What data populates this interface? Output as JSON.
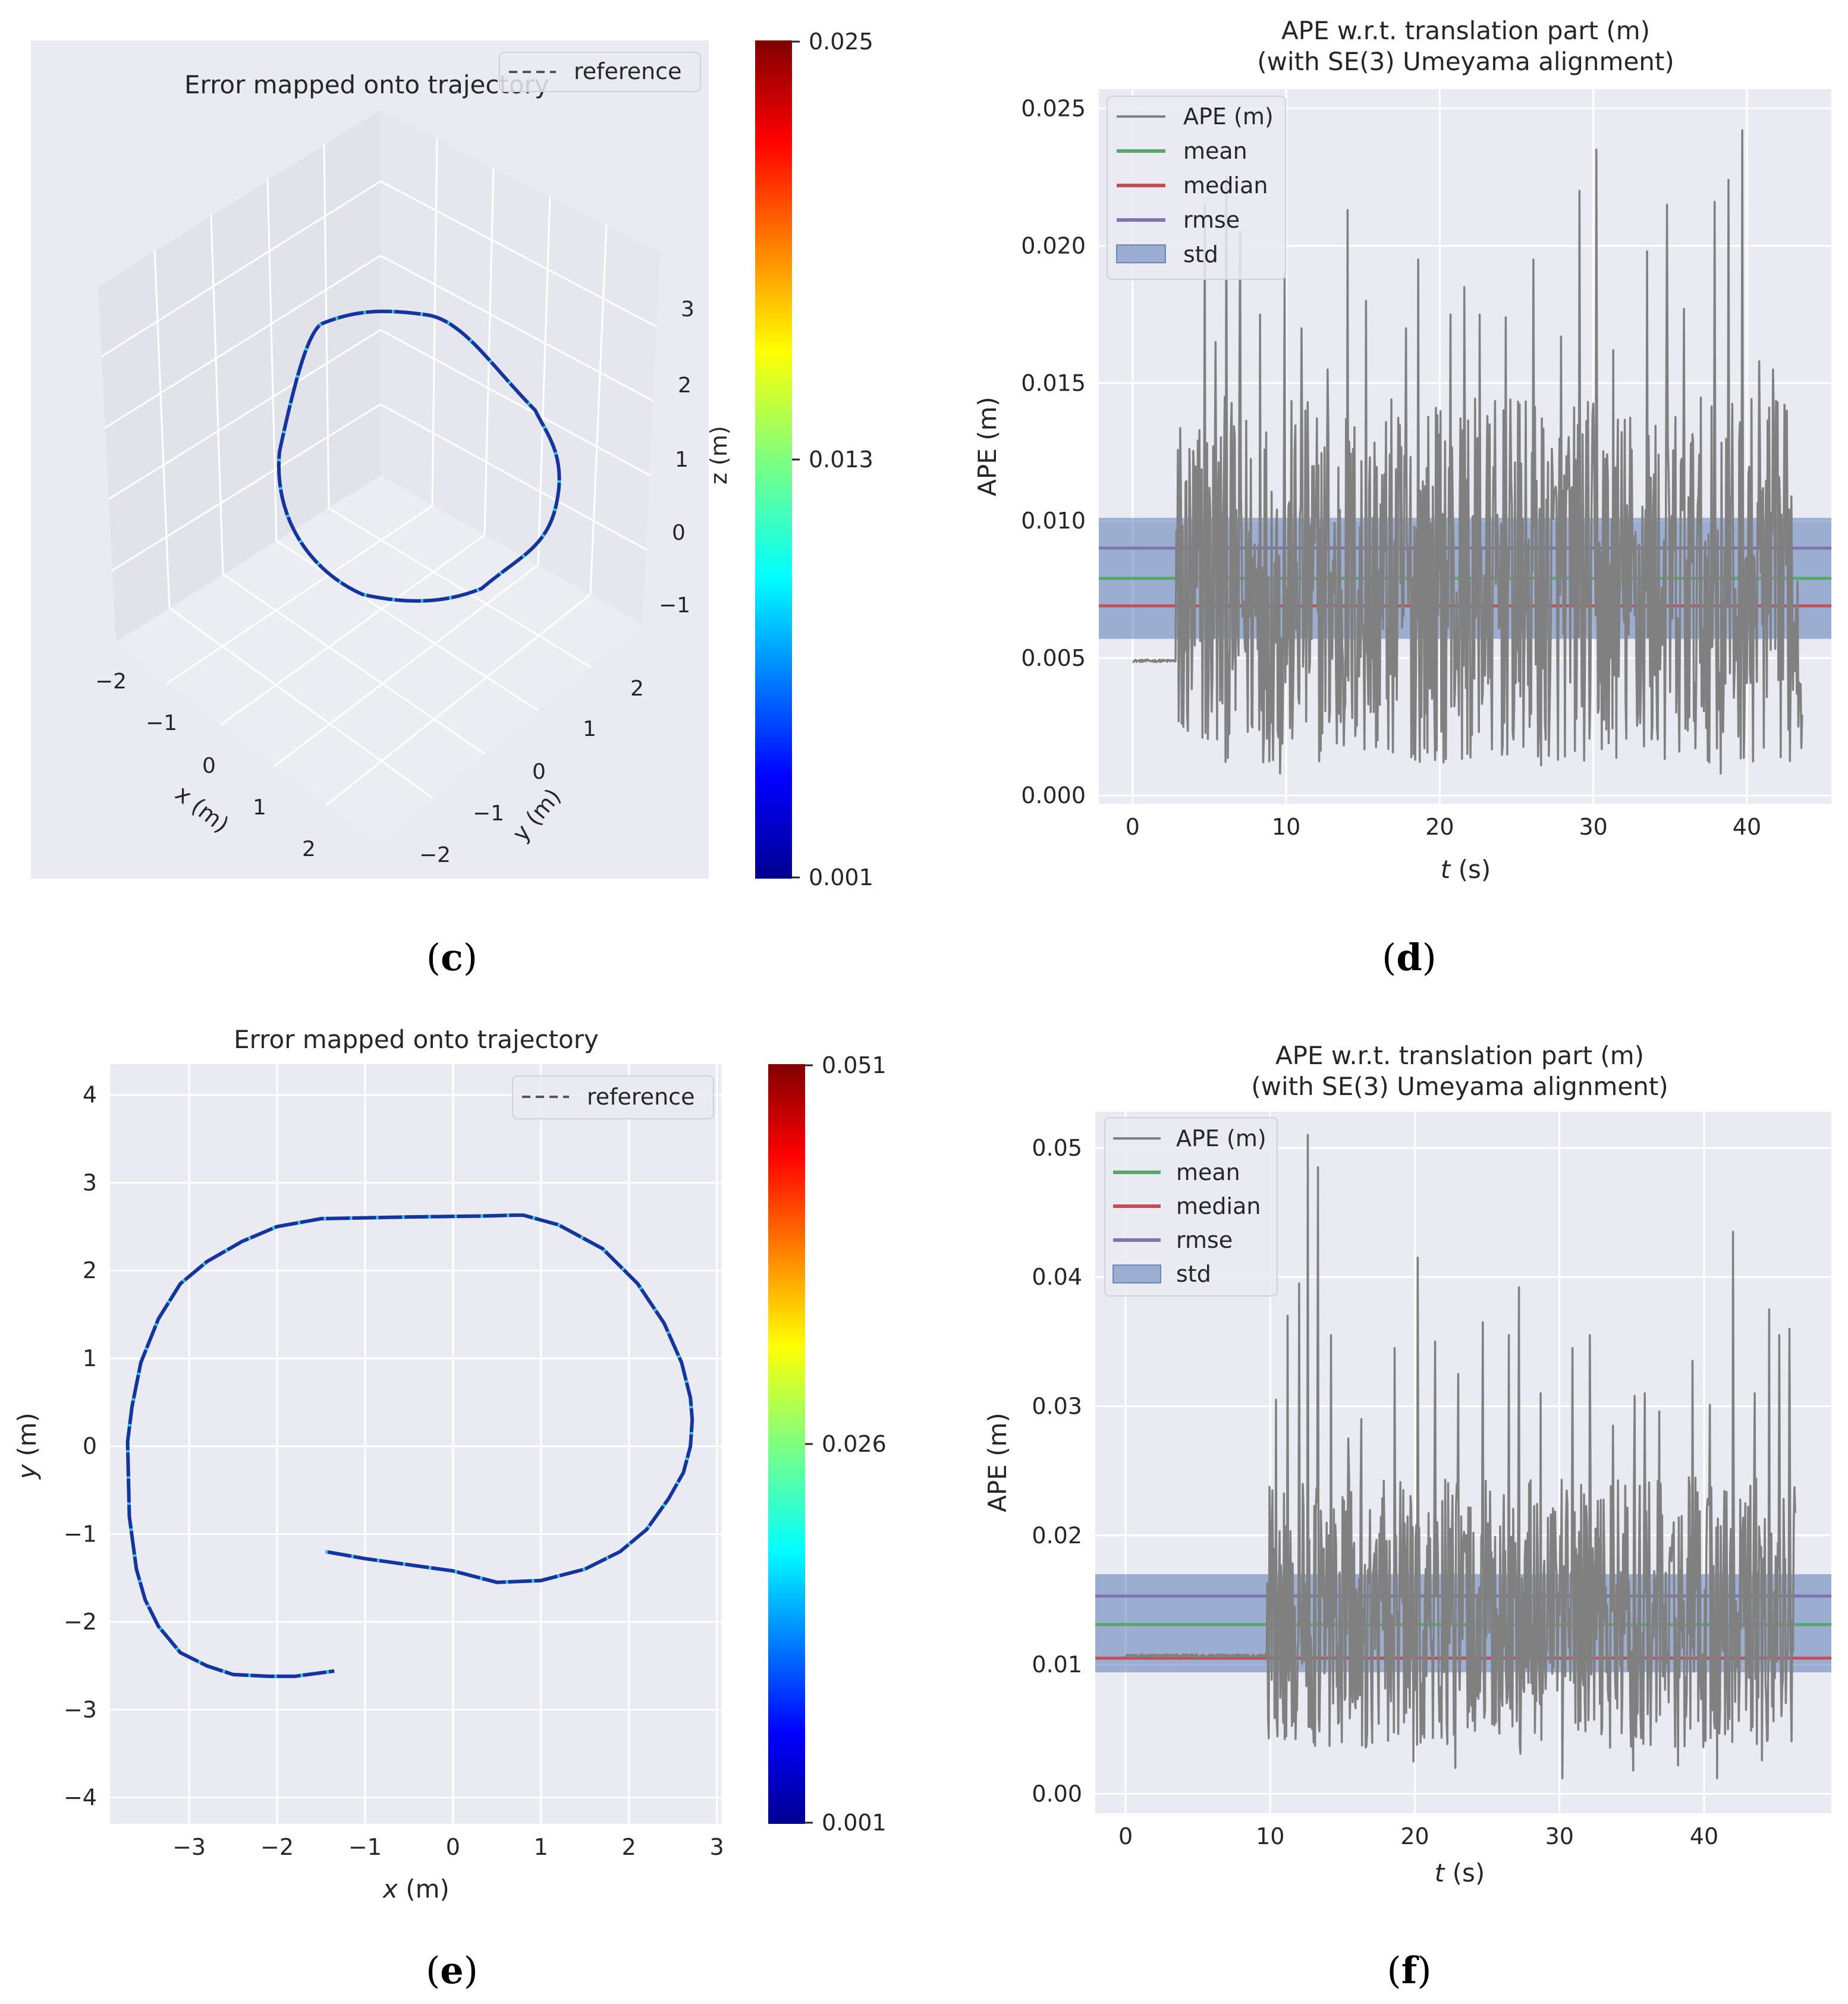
{
  "colors": {
    "panel_bg": "#EAEAF2",
    "grid": "#FFFFFF",
    "ape": "#808080",
    "mean": "#55A868",
    "median": "#C44E52",
    "rmse": "#8172B2",
    "std": "#4C72B0",
    "text": "#262626"
  },
  "chart_data": [
    {
      "id": "c",
      "panel_label": "(c)",
      "label_letter": "c",
      "type": "line3d",
      "title": "Error mapped onto trajectory",
      "legend": [
        "reference"
      ],
      "xlabel": "x (m)",
      "ylabel": "y (m)",
      "zlabel": "z (m)",
      "xticks": [
        "−2",
        "−1",
        "0",
        "1",
        "2"
      ],
      "yticks": [
        "−2",
        "−1",
        "0",
        "1",
        "2"
      ],
      "zticks": [
        "−1",
        "0",
        "1",
        "2",
        "3"
      ],
      "colorbar": {
        "min": 0.001,
        "max": 0.025,
        "ticks": [
          "0.025",
          "0.013",
          "0.001"
        ]
      },
      "trajectory": {
        "description": "closed-loop path in x-y plane, z approximately constant",
        "x": [
          0.4,
          0.9,
          1.6,
          2.1,
          2.4,
          2.3,
          1.9,
          1.2,
          0.4,
          -0.4,
          -1.1,
          -1.7,
          -1.9,
          -1.5,
          -0.9,
          -0.3
        ],
        "y": [
          -1.8,
          -1.9,
          -1.6,
          -1.0,
          -0.2,
          0.6,
          1.3,
          1.9,
          2.2,
          2.1,
          1.7,
          1.0,
          0.2,
          -0.6,
          -1.2,
          -1.6
        ]
      }
    },
    {
      "id": "d",
      "panel_label": "(d)",
      "label_letter": "d",
      "type": "line",
      "title": "APE w.r.t. translation part (m)",
      "subtitle": "(with SE(3) Umeyama alignment)",
      "xlabel_italic": "t",
      "xlabel_rest": " (s)",
      "ylabel": "APE (m)",
      "xlim": [
        -2.2,
        45.5
      ],
      "ylim": [
        -0.0003,
        0.0257
      ],
      "xticks": [
        0,
        10,
        20,
        30,
        40
      ],
      "xtick_labels": [
        "0",
        "10",
        "20",
        "30",
        "40"
      ],
      "yticks": [
        0.0,
        0.005,
        0.01,
        0.015,
        0.02,
        0.025
      ],
      "ytick_labels": [
        "0.000",
        "0.005",
        "0.010",
        "0.015",
        "0.020",
        "0.025"
      ],
      "legend": [
        "APE (m)",
        "mean",
        "median",
        "rmse",
        "std"
      ],
      "stats": {
        "mean": 0.0079,
        "median": 0.0069,
        "rmse": 0.009,
        "std_low": 0.0057,
        "std_high": 0.0101
      },
      "series": [
        {
          "name": "APE (m)",
          "t_start": 0.0,
          "t_end": 43.6,
          "flat_until": 2.8,
          "flat_value": 0.0049,
          "noise_low": 0.0012,
          "noise_high": 0.0145,
          "peaks": [
            [
              4.7,
              0.0215
            ],
            [
              5.4,
              0.0165
            ],
            [
              6.1,
              0.0225
            ],
            [
              7.0,
              0.0205
            ],
            [
              8.3,
              0.0175
            ],
            [
              9.9,
              0.019
            ],
            [
              11.0,
              0.017
            ],
            [
              12.7,
              0.0155
            ],
            [
              14.0,
              0.0213
            ],
            [
              15.2,
              0.018
            ],
            [
              17.8,
              0.017
            ],
            [
              18.6,
              0.0195
            ],
            [
              20.7,
              0.0175
            ],
            [
              21.6,
              0.0185
            ],
            [
              22.6,
              0.0175
            ],
            [
              24.3,
              0.0174
            ],
            [
              26.1,
              0.0195
            ],
            [
              27.9,
              0.0167
            ],
            [
              29.1,
              0.022
            ],
            [
              30.2,
              0.0235
            ],
            [
              31.3,
              0.0162
            ],
            [
              33.5,
              0.0198
            ],
            [
              34.8,
              0.0215
            ],
            [
              35.9,
              0.0177
            ],
            [
              37.9,
              0.0216
            ],
            [
              38.8,
              0.0224
            ],
            [
              39.7,
              0.0242
            ],
            [
              40.8,
              0.0158
            ],
            [
              41.7,
              0.0155
            ],
            [
              42.6,
              0.014
            ]
          ],
          "dips": [
            [
              3.0,
              0.0027
            ],
            [
              3.3,
              0.0025
            ],
            [
              9.6,
              0.0008
            ],
            [
              13.3,
              0.0019
            ],
            [
              18.4,
              0.0013
            ],
            [
              22.1,
              0.0022
            ],
            [
              26.6,
              0.0011
            ],
            [
              31.0,
              0.0019
            ],
            [
              35.6,
              0.0016
            ],
            [
              38.3,
              0.0008
            ]
          ]
        }
      ]
    },
    {
      "id": "e",
      "panel_label": "(e)",
      "label_letter": "e",
      "type": "line",
      "title": "Error mapped onto trajectory",
      "legend": [
        "reference"
      ],
      "xlabel_italic": "x",
      "xlabel_rest": " (m)",
      "ylabel_italic": "y",
      "ylabel_rest": " (m)",
      "xlim": [
        -3.9,
        3.05
      ],
      "ylim": [
        -4.3,
        4.35
      ],
      "xticks": [
        -3,
        -2,
        -1,
        0,
        1,
        2,
        3
      ],
      "xtick_labels": [
        "−3",
        "−2",
        "−1",
        "0",
        "1",
        "2",
        "3"
      ],
      "yticks": [
        -4,
        -3,
        -2,
        -1,
        0,
        1,
        2,
        3,
        4
      ],
      "ytick_labels": [
        "−4",
        "−3",
        "−2",
        "−1",
        "0",
        "1",
        "2",
        "3",
        "4"
      ],
      "colorbar": {
        "min": 0.001,
        "max": 0.051,
        "ticks": [
          "0.051",
          "0.026",
          "0.001"
        ]
      },
      "series": [
        {
          "name": "trajectory",
          "x": [
            -1.45,
            -1.0,
            -0.5,
            0.0,
            0.5,
            1.0,
            1.5,
            1.9,
            2.2,
            2.45,
            2.62,
            2.7,
            2.72,
            2.7,
            2.6,
            2.4,
            2.1,
            1.7,
            1.2,
            0.8,
            0.7,
            0.3,
            -0.5,
            -1.5,
            -2.0,
            -2.4,
            -2.8,
            -3.1,
            -3.35,
            -3.55,
            -3.65,
            -3.7,
            -3.68,
            -3.6,
            -3.5,
            -3.35,
            -3.1,
            -2.8,
            -2.5,
            -2.1,
            -1.8,
            -1.5,
            -1.35
          ],
          "y": [
            -1.2,
            -1.28,
            -1.35,
            -1.42,
            -1.55,
            -1.53,
            -1.4,
            -1.2,
            -0.95,
            -0.6,
            -0.3,
            0.0,
            0.3,
            0.55,
            0.95,
            1.4,
            1.85,
            2.25,
            2.52,
            2.63,
            2.63,
            2.62,
            2.61,
            2.59,
            2.5,
            2.33,
            2.1,
            1.85,
            1.45,
            0.95,
            0.45,
            0.05,
            -0.8,
            -1.4,
            -1.75,
            -2.05,
            -2.35,
            -2.5,
            -2.6,
            -2.62,
            -2.62,
            -2.58,
            -2.56
          ]
        }
      ]
    },
    {
      "id": "f",
      "panel_label": "(f)",
      "label_letter": "f",
      "type": "line",
      "title": "APE w.r.t. translation part (m)",
      "subtitle": "(with SE(3) Umeyama alignment)",
      "xlabel_italic": "t",
      "xlabel_rest": " (s)",
      "ylabel": "APE (m)",
      "xlim": [
        -2.1,
        48.8
      ],
      "ylim": [
        -0.0015,
        0.0528
      ],
      "xticks": [
        0,
        10,
        20,
        30,
        40
      ],
      "xtick_labels": [
        "0",
        "10",
        "20",
        "30",
        "40"
      ],
      "yticks": [
        0.0,
        0.01,
        0.02,
        0.03,
        0.04,
        0.05
      ],
      "ytick_labels": [
        "0.00",
        "0.01",
        "0.02",
        "0.03",
        "0.04",
        "0.05"
      ],
      "legend": [
        "APE (m)",
        "mean",
        "median",
        "rmse",
        "std"
      ],
      "stats": {
        "mean": 0.0131,
        "median": 0.0105,
        "rmse": 0.0153,
        "std_low": 0.0094,
        "std_high": 0.017
      },
      "series": [
        {
          "name": "APE (m)",
          "t_start": 0.0,
          "t_end": 46.3,
          "flat_until": 9.8,
          "flat_value": 0.0107,
          "noise_low": 0.0035,
          "noise_high": 0.0245,
          "peaks": [
            [
              10.4,
              0.0305
            ],
            [
              11.2,
              0.037
            ],
            [
              12.0,
              0.0395
            ],
            [
              12.6,
              0.051
            ],
            [
              13.3,
              0.0485
            ],
            [
              14.2,
              0.0355
            ],
            [
              15.4,
              0.0275
            ],
            [
              16.3,
              0.029
            ],
            [
              18.6,
              0.0345
            ],
            [
              20.2,
              0.0415
            ],
            [
              21.4,
              0.035
            ],
            [
              23.0,
              0.0325
            ],
            [
              24.7,
              0.0365
            ],
            [
              26.5,
              0.0355
            ],
            [
              27.2,
              0.0392
            ],
            [
              28.7,
              0.031
            ],
            [
              30.9,
              0.0345
            ],
            [
              32.1,
              0.0355
            ],
            [
              33.7,
              0.0285
            ],
            [
              35.2,
              0.0308
            ],
            [
              35.9,
              0.031
            ],
            [
              36.9,
              0.0296
            ],
            [
              39.2,
              0.0335
            ],
            [
              40.4,
              0.0301
            ],
            [
              42.0,
              0.0435
            ],
            [
              43.5,
              0.031
            ],
            [
              44.5,
              0.0375
            ],
            [
              45.2,
              0.0355
            ],
            [
              45.9,
              0.036
            ]
          ],
          "dips": [
            [
              10.9,
              0.0055
            ],
            [
              14.1,
              0.0037
            ],
            [
              19.9,
              0.0025
            ],
            [
              22.8,
              0.002
            ],
            [
              27.3,
              0.0031
            ],
            [
              30.2,
              0.0012
            ],
            [
              35.1,
              0.0018
            ],
            [
              38.2,
              0.0022
            ],
            [
              40.9,
              0.0012
            ],
            [
              44.0,
              0.0026
            ]
          ]
        }
      ]
    }
  ]
}
